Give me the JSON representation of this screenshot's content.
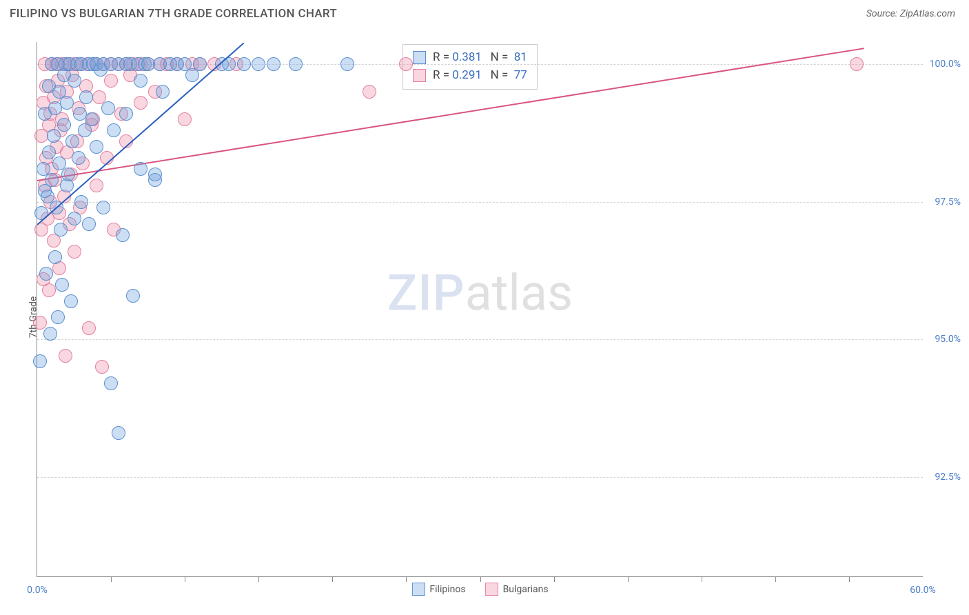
{
  "header": {
    "title": "FILIPINO VS BULGARIAN 7TH GRADE CORRELATION CHART",
    "source_prefix": "Source: ",
    "source": "ZipAtlas.com"
  },
  "chart": {
    "type": "scatter",
    "ylabel": "7th Grade",
    "xlim": [
      0,
      60
    ],
    "ylim": [
      90.7,
      100.4
    ],
    "x_start_label": "0.0%",
    "x_end_label": "60.0%",
    "xtick_minor": [
      5,
      10,
      15,
      20,
      25,
      30,
      35,
      40,
      45,
      50,
      55
    ],
    "ygrid": [
      {
        "value": 92.5,
        "label": "92.5%"
      },
      {
        "value": 95.0,
        "label": "95.0%"
      },
      {
        "value": 97.5,
        "label": "97.5%"
      },
      {
        "value": 100.0,
        "label": "100.0%"
      }
    ],
    "series": {
      "filipinos": {
        "label": "Filipinos",
        "fill": "rgba(108,160,220,0.35)",
        "stroke": "#5a8fcf",
        "line_color": "#2a5fbf",
        "dot_radius": 9,
        "regression": {
          "x0": 0,
          "y0": 97.1,
          "x1": 14,
          "y1": 100.4
        },
        "R": "0.381",
        "N": "81",
        "points": [
          [
            0.2,
            94.6
          ],
          [
            0.3,
            97.3
          ],
          [
            0.4,
            98.1
          ],
          [
            0.5,
            97.7
          ],
          [
            0.5,
            99.1
          ],
          [
            0.6,
            96.2
          ],
          [
            0.7,
            97.6
          ],
          [
            0.8,
            98.4
          ],
          [
            0.8,
            99.6
          ],
          [
            0.9,
            95.1
          ],
          [
            1.0,
            97.9
          ],
          [
            1.0,
            100.0
          ],
          [
            1.1,
            98.7
          ],
          [
            1.2,
            96.5
          ],
          [
            1.2,
            99.2
          ],
          [
            1.3,
            97.4
          ],
          [
            1.4,
            100.0
          ],
          [
            1.4,
            95.4
          ],
          [
            1.5,
            98.2
          ],
          [
            1.5,
            99.5
          ],
          [
            1.6,
            97.0
          ],
          [
            1.7,
            96.0
          ],
          [
            1.8,
            99.8
          ],
          [
            1.8,
            98.9
          ],
          [
            1.9,
            100.0
          ],
          [
            2.0,
            97.8
          ],
          [
            2.0,
            99.3
          ],
          [
            2.1,
            98.0
          ],
          [
            2.2,
            100.0
          ],
          [
            2.3,
            95.7
          ],
          [
            2.4,
            98.6
          ],
          [
            2.5,
            97.2
          ],
          [
            2.5,
            99.7
          ],
          [
            2.7,
            100.0
          ],
          [
            2.8,
            98.3
          ],
          [
            2.9,
            99.1
          ],
          [
            3.0,
            97.5
          ],
          [
            3.0,
            100.0
          ],
          [
            3.2,
            98.8
          ],
          [
            3.3,
            99.4
          ],
          [
            3.5,
            100.0
          ],
          [
            3.5,
            97.1
          ],
          [
            3.7,
            99.0
          ],
          [
            3.8,
            100.0
          ],
          [
            4.0,
            98.5
          ],
          [
            4.0,
            100.0
          ],
          [
            4.3,
            99.9
          ],
          [
            4.5,
            97.4
          ],
          [
            4.5,
            100.0
          ],
          [
            4.8,
            99.2
          ],
          [
            5.0,
            100.0
          ],
          [
            5.0,
            94.2
          ],
          [
            5.2,
            98.8
          ],
          [
            5.5,
            100.0
          ],
          [
            5.5,
            93.3
          ],
          [
            5.8,
            96.9
          ],
          [
            6.0,
            99.1
          ],
          [
            6.0,
            100.0
          ],
          [
            6.3,
            100.0
          ],
          [
            6.5,
            95.8
          ],
          [
            6.8,
            100.0
          ],
          [
            7.0,
            98.1
          ],
          [
            7.0,
            99.7
          ],
          [
            7.3,
            100.0
          ],
          [
            7.5,
            100.0
          ],
          [
            8.0,
            97.9
          ],
          [
            8.0,
            98.0
          ],
          [
            8.3,
            100.0
          ],
          [
            8.5,
            99.5
          ],
          [
            9.0,
            100.0
          ],
          [
            9.5,
            100.0
          ],
          [
            10.0,
            100.0
          ],
          [
            10.5,
            99.8
          ],
          [
            11.0,
            100.0
          ],
          [
            12.5,
            100.0
          ],
          [
            13.0,
            100.0
          ],
          [
            14.0,
            100.0
          ],
          [
            15.0,
            100.0
          ],
          [
            16.0,
            100.0
          ],
          [
            17.5,
            100.0
          ],
          [
            21.0,
            100.0
          ]
        ]
      },
      "bulgarians": {
        "label": "Bulgarians",
        "fill": "rgba(235,140,165,0.35)",
        "stroke": "#e57f9f",
        "line_color": "#d9547f",
        "dot_radius": 9,
        "regression": {
          "x0": 0,
          "y0": 97.9,
          "x1": 56,
          "y1": 100.3
        },
        "R": "0.291",
        "N": "77",
        "points": [
          [
            0.2,
            95.3
          ],
          [
            0.3,
            97.0
          ],
          [
            0.3,
            98.7
          ],
          [
            0.4,
            99.3
          ],
          [
            0.4,
            96.1
          ],
          [
            0.5,
            97.8
          ],
          [
            0.5,
            100.0
          ],
          [
            0.6,
            98.3
          ],
          [
            0.6,
            99.6
          ],
          [
            0.7,
            97.2
          ],
          [
            0.8,
            98.9
          ],
          [
            0.8,
            95.9
          ],
          [
            0.9,
            99.1
          ],
          [
            0.9,
            97.5
          ],
          [
            1.0,
            100.0
          ],
          [
            1.0,
            98.1
          ],
          [
            1.1,
            99.4
          ],
          [
            1.1,
            96.8
          ],
          [
            1.2,
            97.9
          ],
          [
            1.3,
            100.0
          ],
          [
            1.3,
            98.5
          ],
          [
            1.4,
            99.7
          ],
          [
            1.5,
            97.3
          ],
          [
            1.5,
            96.3
          ],
          [
            1.6,
            98.8
          ],
          [
            1.7,
            100.0
          ],
          [
            1.7,
            99.0
          ],
          [
            1.8,
            97.6
          ],
          [
            1.9,
            94.7
          ],
          [
            2.0,
            98.4
          ],
          [
            2.0,
            99.5
          ],
          [
            2.1,
            100.0
          ],
          [
            2.2,
            97.1
          ],
          [
            2.3,
            98.0
          ],
          [
            2.4,
            99.8
          ],
          [
            2.5,
            100.0
          ],
          [
            2.5,
            96.6
          ],
          [
            2.7,
            98.6
          ],
          [
            2.8,
            99.2
          ],
          [
            2.9,
            97.4
          ],
          [
            3.0,
            100.0
          ],
          [
            3.1,
            98.2
          ],
          [
            3.3,
            99.6
          ],
          [
            3.4,
            100.0
          ],
          [
            3.5,
            95.2
          ],
          [
            3.7,
            98.9
          ],
          [
            3.8,
            99.0
          ],
          [
            4.0,
            100.0
          ],
          [
            4.0,
            97.8
          ],
          [
            4.2,
            99.4
          ],
          [
            4.4,
            94.5
          ],
          [
            4.5,
            100.0
          ],
          [
            4.7,
            98.3
          ],
          [
            5.0,
            99.7
          ],
          [
            5.0,
            100.0
          ],
          [
            5.2,
            97.0
          ],
          [
            5.5,
            100.0
          ],
          [
            5.7,
            99.1
          ],
          [
            6.0,
            98.6
          ],
          [
            6.0,
            100.0
          ],
          [
            6.3,
            99.8
          ],
          [
            6.5,
            100.0
          ],
          [
            7.0,
            99.3
          ],
          [
            7.0,
            100.0
          ],
          [
            7.5,
            100.0
          ],
          [
            8.0,
            99.5
          ],
          [
            8.3,
            100.0
          ],
          [
            8.8,
            100.0
          ],
          [
            9.5,
            100.0
          ],
          [
            10.0,
            99.0
          ],
          [
            10.5,
            100.0
          ],
          [
            11.0,
            100.0
          ],
          [
            12.0,
            100.0
          ],
          [
            13.5,
            100.0
          ],
          [
            22.5,
            99.5
          ],
          [
            25.0,
            100.0
          ],
          [
            55.5,
            100.0
          ]
        ]
      }
    },
    "watermark": {
      "zip": "ZIP",
      "atlas": "atlas"
    },
    "background_color": "#ffffff",
    "grid_color": "#d5d5d5",
    "axis_color": "#888888",
    "tick_label_color": "#4a7dc9"
  }
}
